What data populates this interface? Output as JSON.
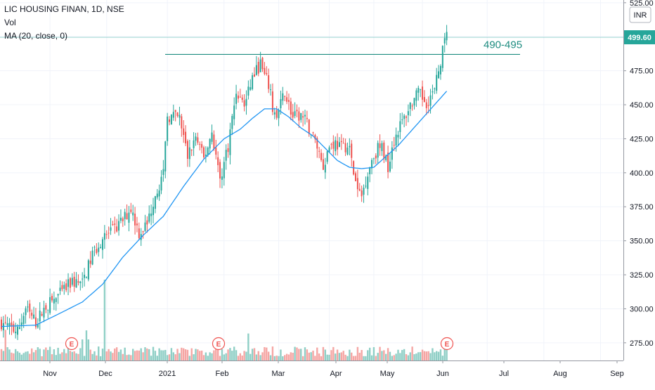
{
  "legend": {
    "title": "LIC HOUSING FINAN, 1D, NSE",
    "vol_label": "Vol",
    "ma_label": "MA (20, close, 0)"
  },
  "currency_label": "INR",
  "price_tag": "499.60",
  "annotation": "490-495",
  "colors": {
    "up": "#26a69a",
    "down": "#ef5350",
    "vol_up": "#8fcfc6",
    "vol_down": "#f5a6a4",
    "ma": "#2196f3",
    "hline": "#1e8c80",
    "axis_text": "#131722",
    "tag_bg": "#26a69a"
  },
  "earnings_marker": "E",
  "chart_data": {
    "type": "candlestick",
    "title": "LIC HOUSING FINAN, 1D, NSE",
    "ylim": [
      262,
      527
    ],
    "y_ticks": [
      "275.00",
      "300.00",
      "325.00",
      "350.00",
      "375.00",
      "400.00",
      "425.00",
      "450.00",
      "475.00",
      "500.00",
      "525.00"
    ],
    "x_ticks": [
      "Nov",
      "Dec",
      "2021",
      "Feb",
      "Mar",
      "Apr",
      "May",
      "Jun",
      "Jul",
      "Aug",
      "Sep"
    ],
    "last_price": 499.6,
    "resistance_level": 487,
    "resistance_label": "490-495",
    "earnings_events": [
      "Nov",
      "Feb",
      "Jun"
    ],
    "anchors": [
      [
        0,
        290
      ],
      [
        8,
        283
      ],
      [
        12,
        300
      ],
      [
        17,
        290
      ],
      [
        22,
        302
      ],
      [
        28,
        309
      ],
      [
        35,
        320
      ],
      [
        40,
        318
      ],
      [
        45,
        340
      ],
      [
        50,
        352
      ],
      [
        56,
        358
      ],
      [
        60,
        365
      ],
      [
        64,
        374
      ],
      [
        68,
        356
      ],
      [
        72,
        362
      ],
      [
        76,
        385
      ],
      [
        80,
        398
      ],
      [
        82,
        442
      ],
      [
        88,
        440
      ],
      [
        92,
        412
      ],
      [
        96,
        426
      ],
      [
        100,
        410
      ],
      [
        104,
        430
      ],
      [
        108,
        395
      ],
      [
        112,
        420
      ],
      [
        116,
        460
      ],
      [
        120,
        450
      ],
      [
        124,
        470
      ],
      [
        128,
        480
      ],
      [
        130,
        470
      ],
      [
        132,
        465
      ],
      [
        134,
        448
      ],
      [
        136,
        440
      ],
      [
        140,
        460
      ],
      [
        144,
        440
      ],
      [
        148,
        442
      ],
      [
        150,
        438
      ],
      [
        153,
        430
      ],
      [
        156,
        420
      ],
      [
        159,
        405
      ],
      [
        162,
        420
      ],
      [
        165,
        422
      ],
      [
        168,
        418
      ],
      [
        170,
        420
      ],
      [
        172,
        417
      ],
      [
        174,
        400
      ],
      [
        176,
        386
      ],
      [
        178,
        383
      ],
      [
        180,
        395
      ],
      [
        183,
        410
      ],
      [
        186,
        418
      ],
      [
        188,
        418
      ],
      [
        191,
        405
      ],
      [
        193,
        420
      ],
      [
        196,
        432
      ],
      [
        199,
        440
      ],
      [
        202,
        450
      ],
      [
        206,
        458
      ],
      [
        210,
        452
      ],
      [
        214,
        460
      ],
      [
        216,
        475
      ],
      [
        218,
        490
      ],
      [
        220,
        500
      ]
    ],
    "ma_anchors": [
      [
        0,
        287
      ],
      [
        17,
        288
      ],
      [
        28,
        296
      ],
      [
        40,
        305
      ],
      [
        50,
        318
      ],
      [
        60,
        338
      ],
      [
        70,
        354
      ],
      [
        80,
        368
      ],
      [
        90,
        390
      ],
      [
        100,
        410
      ],
      [
        110,
        425
      ],
      [
        118,
        432
      ],
      [
        124,
        440
      ],
      [
        130,
        447
      ],
      [
        136,
        447
      ],
      [
        142,
        441
      ],
      [
        148,
        433
      ],
      [
        154,
        427
      ],
      [
        160,
        418
      ],
      [
        166,
        409
      ],
      [
        172,
        404
      ],
      [
        178,
        403
      ],
      [
        184,
        404
      ],
      [
        190,
        412
      ],
      [
        196,
        420
      ],
      [
        202,
        430
      ],
      [
        208,
        440
      ],
      [
        214,
        450
      ],
      [
        220,
        460
      ]
    ]
  }
}
